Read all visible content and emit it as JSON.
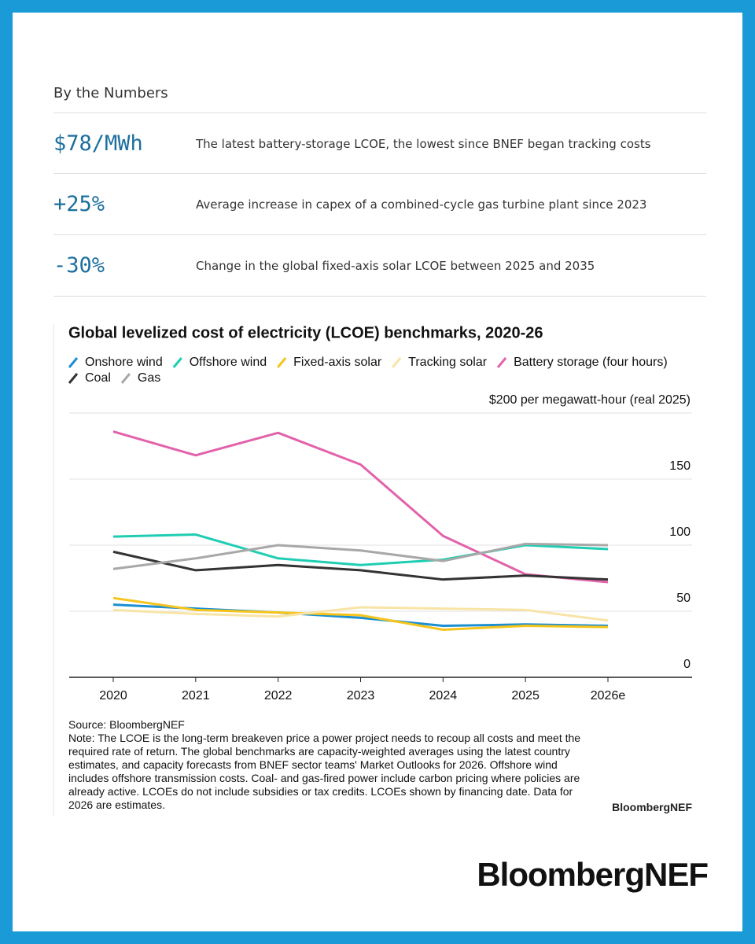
{
  "heading": "By the Numbers",
  "stats": [
    {
      "value": "$78/MWh",
      "text": "The latest battery-storage LCOE, the lowest since BNEF began tracking costs"
    },
    {
      "value": "+25%",
      "text": "Average increase in capex of a combined-cycle gas turbine plant since 2023"
    },
    {
      "value": "-30%",
      "text": "Change in the global fixed-axis solar LCOE between 2025 and 2035"
    }
  ],
  "chart_data": {
    "type": "line",
    "title": "Global levelized cost of electricity (LCOE) benchmarks, 2020-26",
    "categories": [
      "2020",
      "2021",
      "2022",
      "2023",
      "2024",
      "2025",
      "2026e"
    ],
    "series": [
      {
        "name": "Onshore wind",
        "color": "#1b8fd2",
        "values": [
          55,
          52,
          49,
          45,
          39,
          40,
          39
        ]
      },
      {
        "name": "Offshore wind",
        "color": "#1fcdb2",
        "values": [
          106.5,
          108,
          90,
          85,
          89,
          100,
          97
        ]
      },
      {
        "name": "Fixed-axis solar",
        "color": "#f6c51c",
        "values": [
          60,
          51,
          49,
          47,
          36,
          39,
          38
        ]
      },
      {
        "name": "Tracking solar",
        "color": "#f8e4a6",
        "values": [
          51,
          48,
          46,
          53,
          52,
          51,
          43
        ]
      },
      {
        "name": "Battery storage (four hours)",
        "color": "#e262ab",
        "values": [
          186,
          168,
          185,
          161,
          107,
          78,
          72
        ]
      },
      {
        "name": "Coal",
        "color": "#333333",
        "values": [
          95,
          81,
          85,
          81,
          74,
          77,
          74
        ]
      },
      {
        "name": "Gas",
        "color": "#a8a8a8",
        "values": [
          82,
          90,
          100,
          96,
          88,
          101,
          100
        ]
      }
    ],
    "ylim": [
      0,
      200
    ],
    "yticks": [
      0,
      50,
      100,
      150,
      {
        "value": 200,
        "label": "$200 per megawatt-hour (real 2025)"
      }
    ],
    "grid": true,
    "source": "Source: BloombergNEF",
    "note": "Note: The LCOE is the long-term breakeven price a power project needs to recoup all costs and meet the required rate of return. The global benchmarks are capacity-weighted averages using the latest country estimates, and capacity forecasts from BNEF sector teams' Market Outlooks for 2026. Offshore wind includes offshore transmission costs. Coal- and gas-fired power include carbon pricing where policies are already active. LCOEs do not include subsidies or tax credits. LCOEs shown by financing date. Data for 2026 are estimates.",
    "credit": "BloombergNEF"
  },
  "logo": "BloombergNEF"
}
